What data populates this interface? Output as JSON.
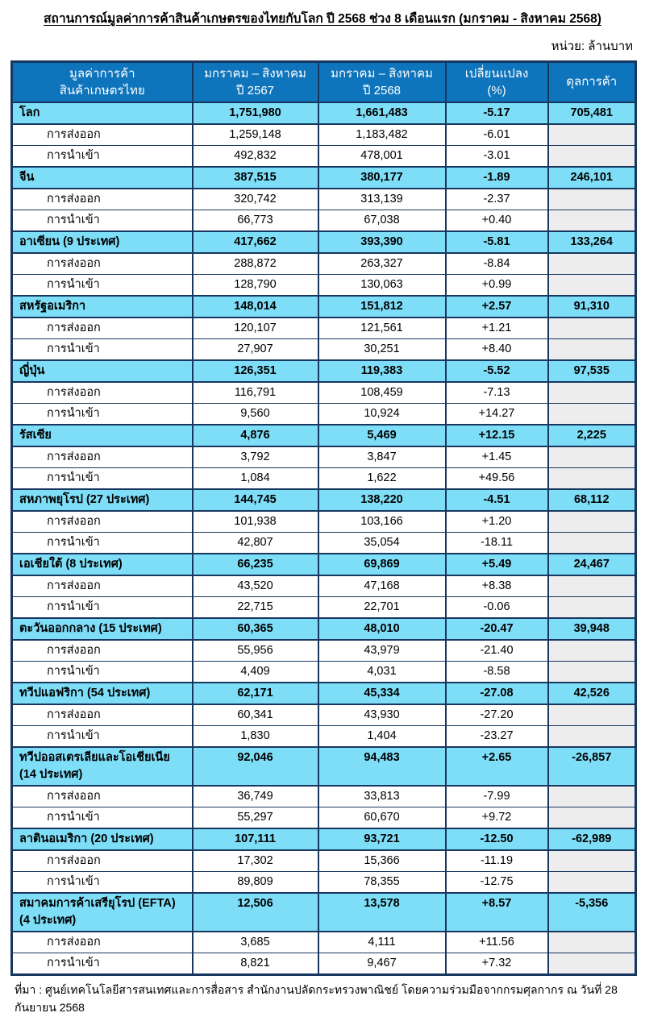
{
  "title": "สถานการณ์มูลค่าการค้าสินค้าเกษตรของไทยกับโลก ปี 2568 ช่วง 8 เดือนแรก (มกราคม - สิงหาคม 2568)",
  "unit_label": "หน่วย: ล้านบาท",
  "footer": "ที่มา : ศูนย์เทคโนโลยีสารสนเทศและการสื่อสาร สำนักงานปลัดกระทรวงพาณิชย์ โดยความร่วมมือจากกรมศุลกากร ณ วันที่ 28 กันยายน 2568",
  "colors": {
    "header_bg": "#0E74BC",
    "group_bg": "#7EDEF8",
    "empty_cell_bg": "#EDEDED",
    "border": "#17375E"
  },
  "table": {
    "headers": {
      "col1_line1": "มูลค่าการค้า",
      "col1_line2": "สินค้าเกษตรไทย",
      "col2_line1": "มกราคม – สิงหาคม",
      "col2_line2": "ปี 2567",
      "col3_line1": "มกราคม – สิงหาคม",
      "col3_line2": "ปี 2568",
      "col4_line1": "เปลี่ยนแปลง",
      "col4_line2": "(%)",
      "col5": "ดุลการค้า"
    },
    "row_labels": {
      "export": "การส่งออก",
      "import": "การนำเข้า"
    },
    "groups": [
      {
        "name": "โลก",
        "name2": null,
        "y2567": "1,751,980",
        "y2568": "1,661,483",
        "change": "-5.17",
        "balance": "705,481",
        "export": {
          "y2567": "1,259,148",
          "y2568": "1,183,482",
          "change": "-6.01"
        },
        "import": {
          "y2567": "492,832",
          "y2568": "478,001",
          "change": "-3.01"
        }
      },
      {
        "name": "จีน",
        "name2": null,
        "y2567": "387,515",
        "y2568": "380,177",
        "change": "-1.89",
        "balance": "246,101",
        "export": {
          "y2567": "320,742",
          "y2568": "313,139",
          "change": "-2.37"
        },
        "import": {
          "y2567": "66,773",
          "y2568": "67,038",
          "change": "+0.40"
        }
      },
      {
        "name": "อาเซียน (9 ประเทศ)",
        "name2": null,
        "y2567": "417,662",
        "y2568": "393,390",
        "change": "-5.81",
        "balance": "133,264",
        "export": {
          "y2567": "288,872",
          "y2568": "263,327",
          "change": "-8.84"
        },
        "import": {
          "y2567": "128,790",
          "y2568": "130,063",
          "change": "+0.99"
        }
      },
      {
        "name": "สหรัฐอเมริกา",
        "name2": null,
        "y2567": "148,014",
        "y2568": "151,812",
        "change": "+2.57",
        "balance": "91,310",
        "export": {
          "y2567": "120,107",
          "y2568": "121,561",
          "change": "+1.21"
        },
        "import": {
          "y2567": "27,907",
          "y2568": "30,251",
          "change": "+8.40"
        }
      },
      {
        "name": "ญี่ปุ่น",
        "name2": null,
        "y2567": "126,351",
        "y2568": "119,383",
        "change": "-5.52",
        "balance": "97,535",
        "export": {
          "y2567": "116,791",
          "y2568": "108,459",
          "change": "-7.13"
        },
        "import": {
          "y2567": "9,560",
          "y2568": "10,924",
          "change": "+14.27"
        }
      },
      {
        "name": "รัสเซีย",
        "name2": null,
        "y2567": "4,876",
        "y2568": "5,469",
        "change": "+12.15",
        "balance": "2,225",
        "export": {
          "y2567": "3,792",
          "y2568": "3,847",
          "change": "+1.45"
        },
        "import": {
          "y2567": "1,084",
          "y2568": "1,622",
          "change": "+49.56"
        }
      },
      {
        "name": "สหภาพยุโรป (27 ประเทศ)",
        "name2": null,
        "y2567": "144,745",
        "y2568": "138,220",
        "change": "-4.51",
        "balance": "68,112",
        "export": {
          "y2567": "101,938",
          "y2568": "103,166",
          "change": "+1.20"
        },
        "import": {
          "y2567": "42,807",
          "y2568": "35,054",
          "change": "-18.11"
        }
      },
      {
        "name": "เอเชียใต้ (8 ประเทศ)",
        "name2": null,
        "y2567": "66,235",
        "y2568": "69,869",
        "change": "+5.49",
        "balance": "24,467",
        "export": {
          "y2567": "43,520",
          "y2568": "47,168",
          "change": "+8.38"
        },
        "import": {
          "y2567": "22,715",
          "y2568": "22,701",
          "change": "-0.06"
        }
      },
      {
        "name": "ตะวันออกกลาง (15 ประเทศ)",
        "name2": null,
        "y2567": "60,365",
        "y2568": "48,010",
        "change": "-20.47",
        "balance": "39,948",
        "export": {
          "y2567": "55,956",
          "y2568": "43,979",
          "change": "-21.40"
        },
        "import": {
          "y2567": "4,409",
          "y2568": "4,031",
          "change": "-8.58"
        }
      },
      {
        "name": "ทวีปแอฟริกา (54 ประเทศ)",
        "name2": null,
        "y2567": "62,171",
        "y2568": "45,334",
        "change": "-27.08",
        "balance": "42,526",
        "export": {
          "y2567": "60,341",
          "y2568": "43,930",
          "change": "-27.20"
        },
        "import": {
          "y2567": "1,830",
          "y2568": "1,404",
          "change": "-23.27"
        }
      },
      {
        "name": "ทวีปออสเตรเลียและโอเชียเนีย",
        "name2": "(14 ประเทศ)",
        "y2567": "92,046",
        "y2568": "94,483",
        "change": "+2.65",
        "balance": "-26,857",
        "export": {
          "y2567": "36,749",
          "y2568": "33,813",
          "change": "-7.99"
        },
        "import": {
          "y2567": "55,297",
          "y2568": "60,670",
          "change": "+9.72"
        }
      },
      {
        "name": "ลาตินอเมริกา (20 ประเทศ)",
        "name2": null,
        "y2567": "107,111",
        "y2568": "93,721",
        "change": "-12.50",
        "balance": "-62,989",
        "export": {
          "y2567": "17,302",
          "y2568": "15,366",
          "change": "-11.19"
        },
        "import": {
          "y2567": "89,809",
          "y2568": "78,355",
          "change": "-12.75"
        }
      },
      {
        "name": "สมาคมการค้าเสรียุโรป (EFTA)",
        "name2": "(4 ประเทศ)",
        "y2567": "12,506",
        "y2568": "13,578",
        "change": "+8.57",
        "balance": "-5,356",
        "export": {
          "y2567": "3,685",
          "y2568": "4,111",
          "change": "+11.56"
        },
        "import": {
          "y2567": "8,821",
          "y2568": "9,467",
          "change": "+7.32"
        }
      }
    ]
  }
}
